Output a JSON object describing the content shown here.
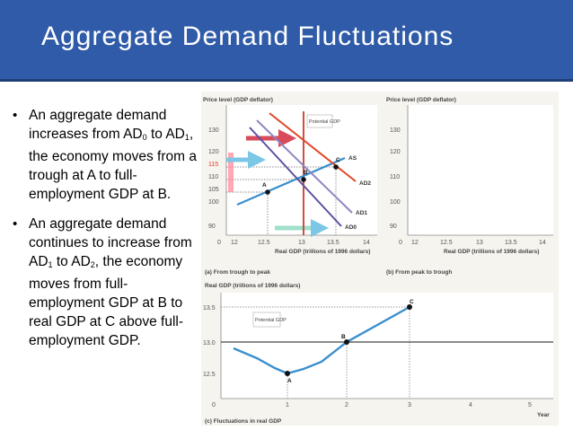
{
  "slide": {
    "title": "Aggregate Demand Fluctuations"
  },
  "bullets": [
    {
      "parts": [
        {
          "t": "An aggregate demand increases from AD"
        },
        {
          "sub": "0"
        },
        {
          "t": " to AD"
        },
        {
          "sub": "1"
        },
        {
          "t": ", the economy moves from a trough at A to full-employment GDP at B."
        }
      ]
    },
    {
      "parts": [
        {
          "t": "An aggregate demand continues to increase from AD"
        },
        {
          "sub": "1"
        },
        {
          "t": " to AD"
        },
        {
          "sub": "2"
        },
        {
          "t": ", the economy moves from full-employment GDP at B to real GDP at C above full-employment GDP."
        }
      ]
    }
  ],
  "panel_a": {
    "ylabel": "Price level (GDP deflator)",
    "xlabel": "Real GDP (trillions of 1996 dollars)",
    "caption": "(a) From trough to peak",
    "y_ticks": [
      "130",
      "120",
      "115",
      "110",
      "105",
      "100",
      "90"
    ],
    "x_ticks": [
      "0",
      "12",
      "12.5",
      "13",
      "13.5",
      "14"
    ],
    "potential_label": "Potential GDP",
    "curve_labels": {
      "as": "AS",
      "ad0": "AD0",
      "ad1": "AD1",
      "ad2": "AD2"
    },
    "point_labels": {
      "a": "A",
      "b": "B",
      "c": "C"
    }
  },
  "panel_b": {
    "ylabel": "Price level (GDP deflator)",
    "xlabel": "Real GDP (trillions of 1996 dollars)",
    "caption": "(b) From peak to trough",
    "y_ticks": [
      "130",
      "120",
      "110",
      "100",
      "90"
    ],
    "x_ticks": [
      "0",
      "12",
      "12.5",
      "13",
      "13.5",
      "14"
    ]
  },
  "panel_c": {
    "ylabel": "Real GDP (trillions of 1996 dollars)",
    "xlabel": "Year",
    "caption": "(c) Fluctuations in real GDP",
    "y_ticks": [
      "13.5",
      "13.0",
      "12.5"
    ],
    "x_ticks": [
      "0",
      "1",
      "2",
      "3",
      "4",
      "5"
    ],
    "potential_label": "Potential GDP",
    "point_labels": {
      "a": "A",
      "b": "B",
      "c": "C"
    }
  },
  "colors": {
    "header": "#2f5ba8",
    "as_curve": "#3a8fce",
    "ad0": "#5b4fa0",
    "ad1": "#8e86c4",
    "ad2": "#e04a2a",
    "potential": "#cf3b2a",
    "highlight": "#ff8a9a"
  }
}
